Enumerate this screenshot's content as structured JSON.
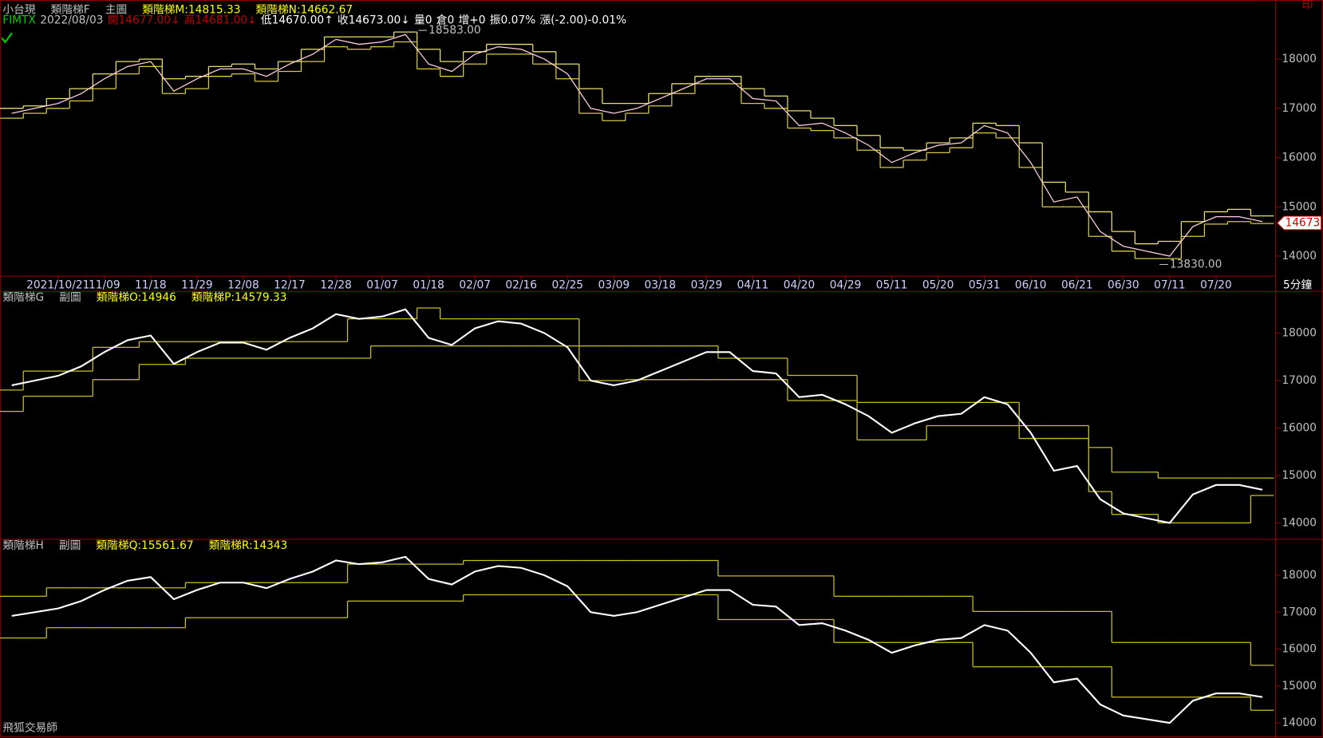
{
  "chart_data": [
    {
      "type": "step",
      "title": "小台現",
      "indicator": "類階梯F",
      "pane": "主圖",
      "quote": [
        {
          "text": "FIMTX",
          "color": "#00d000"
        },
        {
          "text": "2022/08/03",
          "color": "#c0c0c0"
        },
        {
          "text": "開14677.00↓",
          "color": "#c00000"
        },
        {
          "text": "高14681.00↓",
          "color": "#c00000"
        },
        {
          "text": "低14670.00↑",
          "color": "#ffffff"
        },
        {
          "text": "收14673.00↓",
          "color": "#ffffff"
        },
        {
          "text": "量0",
          "color": "#ffffff"
        },
        {
          "text": "倉0",
          "color": "#ffffff"
        },
        {
          "text": "增+0",
          "color": "#ffffff"
        },
        {
          "text": "振0.07%",
          "color": "#ffffff"
        },
        {
          "text": "漲(-2.00)-0.01%",
          "color": "#ffffff"
        }
      ],
      "categories": [
        null,
        null,
        "2021/10/21",
        null,
        "11/09",
        null,
        "11/18",
        null,
        "11/29",
        null,
        "12/08",
        null,
        "12/17",
        null,
        "12/28",
        null,
        "01/07",
        null,
        "01/18",
        null,
        "02/07",
        null,
        "02/16",
        null,
        "02/25",
        null,
        "03/09",
        null,
        "03/18",
        null,
        "03/29",
        null,
        "04/11",
        null,
        "04/20",
        null,
        "04/29",
        null,
        "05/11",
        null,
        "05/20",
        null,
        "05/31",
        null,
        "06/10",
        null,
        "06/21",
        null,
        "06/30",
        null,
        "07/11",
        null,
        "07/20",
        null,
        null
      ],
      "price": {
        "color": "#ffd0e0",
        "values": [
          16900,
          17000,
          17100,
          17300,
          17600,
          17850,
          17950,
          17350,
          17600,
          17800,
          17800,
          17650,
          17900,
          18100,
          18400,
          18300,
          18350,
          18500,
          17900,
          17750,
          18100,
          18250,
          18200,
          18000,
          17700,
          17000,
          16900,
          17000,
          17200,
          17400,
          17600,
          17600,
          17200,
          17150,
          16650,
          16700,
          16500,
          16250,
          15900,
          16100,
          16250,
          16300,
          16650,
          16500,
          15900,
          15100,
          15200,
          14500,
          14200,
          14100,
          14000,
          14600,
          14800,
          14800,
          14700
        ]
      },
      "series": [
        {
          "name": "類階梯M:14815.33",
          "color": "#e8e070",
          "values": [
            17000,
            17050,
            17200,
            17400,
            17700,
            17950,
            18000,
            17600,
            17650,
            17850,
            17900,
            17800,
            17950,
            18200,
            18450,
            18450,
            18450,
            18550,
            18200,
            17950,
            18150,
            18300,
            18300,
            18150,
            17900,
            17400,
            17100,
            17100,
            17300,
            17500,
            17650,
            17650,
            17400,
            17250,
            16950,
            16800,
            16650,
            16450,
            16200,
            16150,
            16300,
            16400,
            16700,
            16650,
            16300,
            15500,
            15300,
            14900,
            14500,
            14250,
            14300,
            14700,
            14900,
            14950,
            14815.33
          ]
        },
        {
          "name": "類階梯N:14662.67",
          "color": "#d8c840",
          "values": [
            16800,
            16900,
            17000,
            17150,
            17400,
            17700,
            17850,
            17300,
            17400,
            17650,
            17700,
            17550,
            17750,
            17950,
            18250,
            18200,
            18250,
            18350,
            17800,
            17650,
            17900,
            18100,
            18100,
            17900,
            17600,
            16900,
            16750,
            16900,
            17050,
            17300,
            17500,
            17500,
            17100,
            17000,
            16600,
            16550,
            16400,
            16150,
            15800,
            15950,
            16100,
            16200,
            16500,
            16400,
            15800,
            15000,
            15000,
            14400,
            14100,
            13950,
            13950,
            14400,
            14650,
            14700,
            14662.67
          ]
        }
      ],
      "annotations": [
        {
          "value": 18583,
          "label": "18583.00",
          "x": "01/18"
        },
        {
          "value": 13830,
          "label": "13830.00",
          "x": "07/11"
        }
      ],
      "last_price": 14673,
      "ylim": [
        13600,
        19200
      ],
      "yticks": [
        14000,
        15000,
        16000,
        17000,
        18000
      ]
    },
    {
      "type": "step",
      "indicator": "類階梯G",
      "pane": "副圖",
      "price": {
        "color": "#ffffff",
        "values": [
          16900,
          17000,
          17100,
          17300,
          17600,
          17850,
          17950,
          17350,
          17600,
          17800,
          17800,
          17650,
          17900,
          18100,
          18400,
          18300,
          18350,
          18500,
          17900,
          17750,
          18100,
          18250,
          18200,
          18000,
          17700,
          17000,
          16900,
          17000,
          17200,
          17400,
          17600,
          17600,
          17200,
          17150,
          16650,
          16700,
          16500,
          16250,
          15900,
          16100,
          16250,
          16300,
          16650,
          16500,
          15900,
          15100,
          15200,
          14500,
          14200,
          14100,
          14000,
          14600,
          14800,
          14800,
          14700
        ]
      },
      "series": [
        {
          "name": "類階梯O:14946",
          "color": "#c8c020",
          "values": [
            16800,
            17200,
            17200,
            17200,
            17700,
            17700,
            17820,
            17820,
            17820,
            17820,
            17820,
            17820,
            17820,
            17820,
            17820,
            18300,
            18300,
            18300,
            18530,
            18300,
            18300,
            18300,
            18300,
            18300,
            18300,
            17730,
            17730,
            17730,
            17730,
            17730,
            17730,
            17470,
            17470,
            17470,
            17110,
            17110,
            17110,
            16540,
            16540,
            16540,
            16540,
            16540,
            16540,
            16540,
            16050,
            16050,
            16050,
            15590,
            15070,
            15070,
            14946,
            14946,
            14946,
            14946,
            14946
          ]
        },
        {
          "name": "類階梯P:14579.33",
          "color": "#c8c020",
          "values": [
            16350,
            16670,
            16670,
            16670,
            17020,
            17020,
            17340,
            17340,
            17470,
            17470,
            17470,
            17470,
            17470,
            17470,
            17470,
            17470,
            17730,
            17730,
            17730,
            17730,
            17730,
            17730,
            17730,
            17730,
            17730,
            17000,
            17000,
            17020,
            17020,
            17020,
            17020,
            17020,
            17020,
            17020,
            16580,
            16580,
            16580,
            15750,
            15750,
            15750,
            16050,
            16050,
            16050,
            16050,
            15780,
            15780,
            15780,
            14660,
            14180,
            14180,
            14000,
            14000,
            14000,
            14000,
            14579.33
          ]
        }
      ],
      "ylim": [
        13680,
        18870
      ],
      "yticks": [
        14000,
        15000,
        16000,
        17000,
        18000
      ]
    },
    {
      "type": "step",
      "indicator": "類階梯H",
      "pane": "副圖",
      "price": {
        "color": "#ffffff",
        "values": [
          16900,
          17000,
          17100,
          17300,
          17600,
          17850,
          17950,
          17350,
          17600,
          17800,
          17800,
          17650,
          17900,
          18100,
          18400,
          18300,
          18350,
          18500,
          17900,
          17750,
          18100,
          18250,
          18200,
          18000,
          17700,
          17000,
          16900,
          17000,
          17200,
          17400,
          17600,
          17600,
          17200,
          17150,
          16650,
          16700,
          16500,
          16250,
          15900,
          16100,
          16250,
          16300,
          16650,
          16500,
          15900,
          15100,
          15200,
          14500,
          14200,
          14100,
          14000,
          14600,
          14800,
          14800,
          14700
        ]
      },
      "series": [
        {
          "name": "類階梯Q:15561.67",
          "color": "#c8c020",
          "values": [
            17430,
            17430,
            17660,
            17660,
            17660,
            17660,
            17660,
            17660,
            17800,
            17800,
            17800,
            17800,
            17800,
            17800,
            17800,
            18300,
            18300,
            18300,
            18300,
            18300,
            18400,
            18400,
            18400,
            18400,
            18400,
            18400,
            18400,
            18400,
            18400,
            18400,
            18400,
            17980,
            17980,
            17980,
            17980,
            17980,
            17430,
            17430,
            17430,
            17430,
            17430,
            17430,
            17020,
            17020,
            17020,
            17020,
            17020,
            17020,
            16180,
            16180,
            16180,
            16180,
            16180,
            16180,
            15561.67
          ]
        },
        {
          "name": "類階梯R:14343",
          "color": "#c8c020",
          "values": [
            16300,
            16300,
            16580,
            16580,
            16580,
            16580,
            16580,
            16580,
            16850,
            16850,
            16850,
            16850,
            16850,
            16850,
            16850,
            17300,
            17300,
            17300,
            17300,
            17300,
            17470,
            17470,
            17470,
            17470,
            17470,
            17470,
            17470,
            17470,
            17470,
            17470,
            17470,
            16800,
            16800,
            16800,
            16800,
            16800,
            16180,
            16180,
            16180,
            16180,
            16180,
            16180,
            15520,
            15520,
            15520,
            15520,
            15520,
            15520,
            14700,
            14700,
            14700,
            14700,
            14700,
            14700,
            14343
          ]
        }
      ],
      "ylim": [
        13660,
        18960
      ],
      "yticks": [
        14000,
        15000,
        16000,
        17000,
        18000
      ]
    }
  ],
  "app": {
    "corner": "印",
    "interval": "5分鐘",
    "footer": "飛狐交易師"
  }
}
